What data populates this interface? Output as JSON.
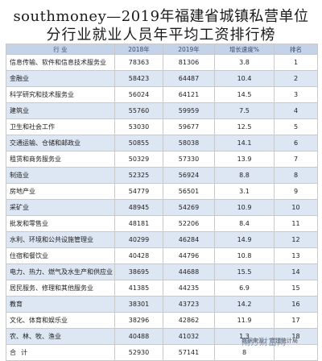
{
  "title_line1": "southmoney—2019年福建省城镇私营单位",
  "title_line2": "分行业就业人员年平均工资排行榜",
  "table": {
    "headers": [
      "行    业",
      "2018年",
      "2019年",
      "增长速度%",
      "排名"
    ],
    "rows": [
      [
        "信息传输、软件和信息技术服务业",
        "78363",
        "81306",
        "3.8",
        "1"
      ],
      [
        "金融业",
        "58423",
        "64487",
        "10.4",
        "2"
      ],
      [
        "科学研究和技术服务业",
        "56024",
        "64121",
        "14.5",
        "3"
      ],
      [
        "建筑业",
        "55760",
        "59959",
        "7.5",
        "4"
      ],
      [
        "卫生和社会工作",
        "53030",
        "59677",
        "12.5",
        "5"
      ],
      [
        "交通运输、仓储和邮政业",
        "50855",
        "58038",
        "14.1",
        "6"
      ],
      [
        "租赁和商务服务业",
        "50329",
        "57330",
        "13.9",
        "7"
      ],
      [
        "制造业",
        "52325",
        "56924",
        "8.8",
        "8"
      ],
      [
        "房地产业",
        "54779",
        "56501",
        "3.1",
        "9"
      ],
      [
        "采矿业",
        "48945",
        "54269",
        "10.9",
        "10"
      ],
      [
        "批发和零售业",
        "48181",
        "52206",
        "8.4",
        "11"
      ],
      [
        "水利、环境和公共设施管理业",
        "40299",
        "46284",
        "14.9",
        "12"
      ],
      [
        "住宿和餐饮业",
        "40428",
        "44796",
        "10.8",
        "13"
      ],
      [
        "电力、热力、燃气及水生产和供应业",
        "38695",
        "44688",
        "15.5",
        "14"
      ],
      [
        "居民服务、修理和其他服务业",
        "41385",
        "44235",
        "6.9",
        "15"
      ],
      [
        "教育",
        "38301",
        "43723",
        "14.2",
        "16"
      ],
      [
        "文化、体育和娱乐业",
        "38296",
        "42862",
        "11.9",
        "17"
      ],
      [
        "农、林、牧、渔业",
        "40488",
        "41032",
        "1.3",
        "18"
      ],
      [
        "合计",
        "52930",
        "57141",
        "8",
        ""
      ]
    ]
  },
  "footer_text": "数据来源：福建统计局",
  "watermark_text": "南方财富网"
}
